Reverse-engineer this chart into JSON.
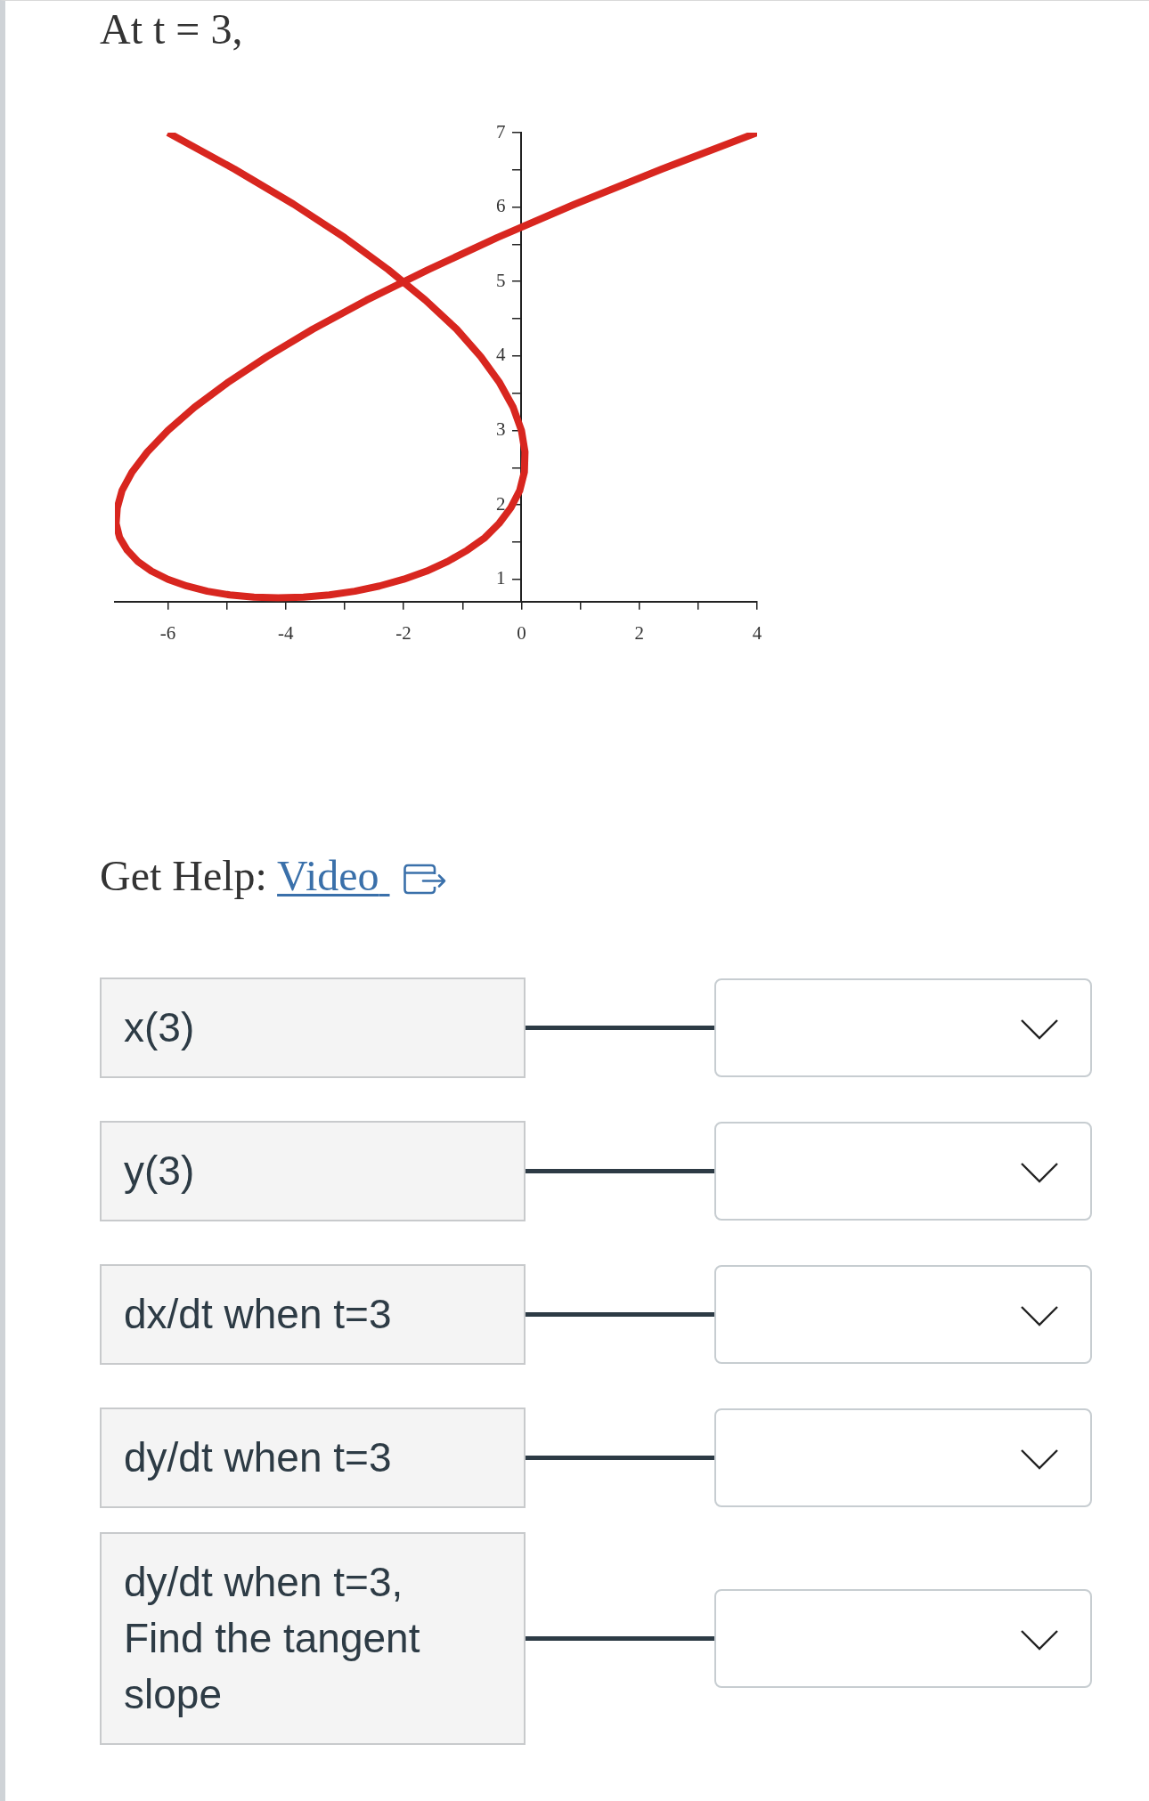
{
  "chart_data": {
    "type": "line",
    "title": "At t = 3,",
    "annotations": [
      "Get Help:",
      "Video",
      "x(3)",
      "y(3)",
      "dx/dt when t=3",
      "dy/dt when t=3",
      "dy/dt when t=3, Find the tangent slope"
    ],
    "x": [
      -6,
      -4.87,
      -3.87,
      -3.0,
      -2.26,
      -1.63,
      -1.1,
      -0.69,
      -0.37,
      -0.14,
      0,
      0.06,
      0.05,
      -0.03,
      -0.18,
      -0.38,
      -0.62,
      -0.92,
      -1.25,
      -1.61,
      -2,
      -2.41,
      -2.83,
      -3.26,
      -3.7,
      -4.13,
      -4.54,
      -4.95,
      -5.33,
      -5.68,
      -6,
      -6.28,
      -6.51,
      -6.69,
      -6.82,
      -6.88,
      -6.86,
      -6.78,
      -6.61,
      -6.35,
      -6,
      -5.55,
      -4.99,
      -4.32,
      -3.54,
      -2.63,
      -1.58,
      -0.41,
      0.91,
      2.38,
      4
    ],
    "values": [
      7,
      6.51,
      6.04,
      5.59,
      5.16,
      4.75,
      4.36,
      3.99,
      3.64,
      3.31,
      3,
      2.71,
      2.44,
      2.19,
      1.96,
      1.75,
      1.56,
      1.39,
      1.24,
      1.11,
      1,
      0.91,
      0.84,
      0.79,
      0.76,
      0.75,
      0.76,
      0.79,
      0.84,
      0.91,
      1,
      1.11,
      1.24,
      1.39,
      1.56,
      1.75,
      1.96,
      2.19,
      2.44,
      2.71,
      3,
      3.31,
      3.64,
      3.99,
      4.36,
      4.75,
      5.16,
      5.59,
      6.04,
      6.51,
      7
    ],
    "color": "#d8261f",
    "line_style": "solid",
    "xlim": [
      -6.9,
      4
    ],
    "ylim": [
      0.7,
      7
    ],
    "xticks": [
      -6,
      {
        "value": -5,
        "label": null
      },
      -4,
      {
        "value": -3,
        "label": null
      },
      -2,
      {
        "value": -1,
        "label": null
      },
      0,
      {
        "value": 1,
        "label": null
      },
      2,
      {
        "value": 3,
        "label": null
      },
      4
    ],
    "yticks": [
      1,
      {
        "value": 1.5,
        "label": null
      },
      2,
      {
        "value": 2.5,
        "label": null
      },
      3,
      {
        "value": 3.5,
        "label": null
      },
      4,
      {
        "value": 4.5,
        "label": null
      },
      5,
      {
        "value": 5.5,
        "label": null
      },
      6,
      {
        "value": 6.5,
        "label": null
      },
      7
    ]
  }
}
